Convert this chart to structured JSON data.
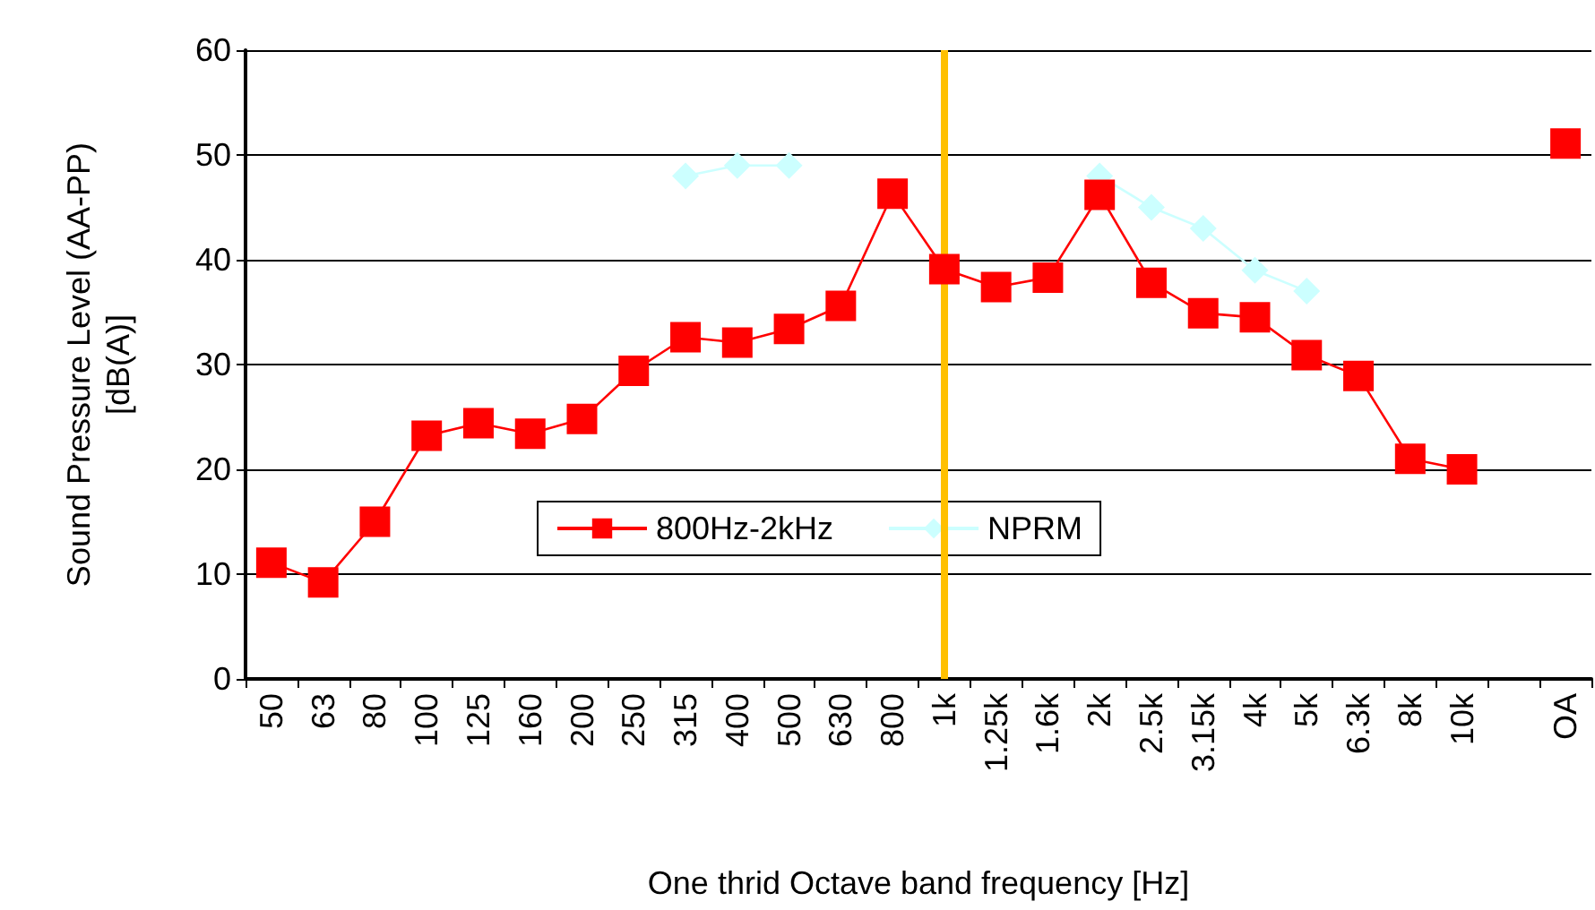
{
  "chart_data": {
    "type": "line",
    "xlabel": "One thrid Octave band frequency [Hz]",
    "ylabel": "Sound Pressure Level (AA-PP)\n[dB(A)]",
    "categories": [
      "50",
      "63",
      "80",
      "100",
      "125",
      "160",
      "200",
      "250",
      "315",
      "400",
      "500",
      "630",
      "800",
      "1k",
      "1.25k",
      "1.6k",
      "2k",
      "2.5k",
      "3.15k",
      "4k",
      "5k",
      "6.3k",
      "8k",
      "10k",
      null,
      "OA"
    ],
    "series": [
      {
        "name": "800Hz-2kHz",
        "color": "#ff0000",
        "marker": "square",
        "values": [
          11.1,
          9.2,
          15.0,
          23.2,
          24.4,
          23.4,
          24.8,
          29.4,
          32.6,
          32.1,
          33.4,
          35.6,
          46.3,
          39.1,
          37.4,
          38.3,
          46.2,
          37.8,
          34.9,
          34.5,
          30.9,
          28.9,
          21.0,
          20.0,
          null,
          51.1
        ]
      },
      {
        "name": "NPRM",
        "color": "#ccffff",
        "marker": "diamond",
        "values": [
          null,
          null,
          null,
          null,
          null,
          null,
          null,
          null,
          48,
          49,
          49,
          null,
          null,
          null,
          null,
          null,
          48,
          45,
          43,
          39,
          37,
          null,
          null,
          null,
          null,
          null
        ]
      }
    ],
    "ylim": [
      0,
      60
    ],
    "yticks": [
      0,
      10,
      20,
      30,
      40,
      50,
      60
    ],
    "grid": "y",
    "legend": "bottom",
    "line_style": "solid",
    "ref_lines": [
      {
        "axis": "x",
        "value": "1k",
        "color": "#ffc000"
      }
    ]
  }
}
